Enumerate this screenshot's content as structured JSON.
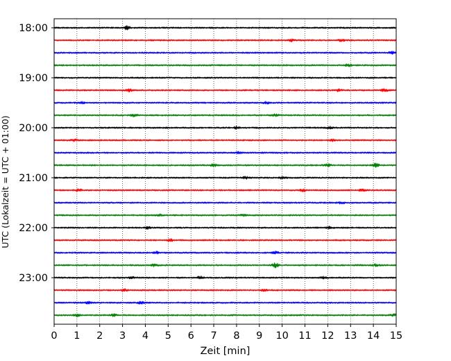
{
  "chart_data": {
    "type": "line",
    "description_kind": "helicorder",
    "xlabel": "Zeit  [min]",
    "ylabel": "UTC (Lokalzeit = UTC + 01:00)",
    "xlim": [
      0,
      15
    ],
    "x_ticks": [
      "0",
      "1",
      "2",
      "3",
      "4",
      "5",
      "6",
      "7",
      "8",
      "9",
      "10",
      "11",
      "12",
      "13",
      "14",
      "15"
    ],
    "y_tick_labels": [
      "18:00",
      "19:00",
      "20:00",
      "21:00",
      "22:00",
      "23:00"
    ],
    "grid": {
      "vertical": true,
      "horizontal": false
    },
    "trace_colors": [
      "#000000",
      "#ff0000",
      "#0000ff",
      "#008000"
    ],
    "series": [
      {
        "start": "18:00",
        "events": [
          {
            "x": 3.2,
            "amp": 2.5
          }
        ]
      },
      {
        "start": "18:15",
        "events": [
          {
            "x": 10.4,
            "amp": 1.6
          },
          {
            "x": 12.6,
            "amp": 1.3
          }
        ]
      },
      {
        "start": "18:30",
        "events": [
          {
            "x": 14.8,
            "amp": 1.5
          }
        ]
      },
      {
        "start": "18:45",
        "events": [
          {
            "x": 12.9,
            "amp": 1.3
          }
        ]
      },
      {
        "start": "19:00",
        "events": []
      },
      {
        "start": "19:15",
        "events": [
          {
            "x": 3.3,
            "amp": 1.5
          },
          {
            "x": 12.5,
            "amp": 1.6
          },
          {
            "x": 14.5,
            "amp": 2.0
          }
        ]
      },
      {
        "start": "19:30",
        "events": [
          {
            "x": 1.2,
            "amp": 1.3
          },
          {
            "x": 9.3,
            "amp": 1.3
          }
        ]
      },
      {
        "start": "19:45",
        "events": [
          {
            "x": 3.5,
            "amp": 1.7
          },
          {
            "x": 9.7,
            "amp": 1.4
          }
        ]
      },
      {
        "start": "20:00",
        "events": [
          {
            "x": 8.0,
            "amp": 1.5
          },
          {
            "x": 12.1,
            "amp": 1.3
          }
        ]
      },
      {
        "start": "20:15",
        "events": [
          {
            "x": 0.9,
            "amp": 1.3
          },
          {
            "x": 12.2,
            "amp": 1.4
          }
        ]
      },
      {
        "start": "20:30",
        "events": [
          {
            "x": 8.1,
            "amp": 1.3
          }
        ]
      },
      {
        "start": "20:45",
        "events": [
          {
            "x": 7.0,
            "amp": 1.5
          },
          {
            "x": 12.0,
            "amp": 1.6
          },
          {
            "x": 14.1,
            "amp": 2.5
          }
        ]
      },
      {
        "start": "21:00",
        "events": [
          {
            "x": 8.4,
            "amp": 1.6
          },
          {
            "x": 10.0,
            "amp": 1.5
          }
        ]
      },
      {
        "start": "21:15",
        "events": [
          {
            "x": 1.1,
            "amp": 1.4
          },
          {
            "x": 10.9,
            "amp": 1.6
          },
          {
            "x": 13.5,
            "amp": 1.4
          }
        ]
      },
      {
        "start": "21:30",
        "events": [
          {
            "x": 12.6,
            "amp": 1.3
          }
        ]
      },
      {
        "start": "21:45",
        "events": [
          {
            "x": 4.6,
            "amp": 1.3
          },
          {
            "x": 8.3,
            "amp": 1.3
          }
        ]
      },
      {
        "start": "22:00",
        "events": [
          {
            "x": 4.1,
            "amp": 1.4
          },
          {
            "x": 12.1,
            "amp": 1.3
          }
        ]
      },
      {
        "start": "22:15",
        "events": [
          {
            "x": 5.1,
            "amp": 1.3
          }
        ]
      },
      {
        "start": "22:30",
        "events": [
          {
            "x": 4.5,
            "amp": 1.4
          },
          {
            "x": 9.7,
            "amp": 1.5
          }
        ]
      },
      {
        "start": "22:45",
        "events": [
          {
            "x": 4.4,
            "amp": 1.5
          },
          {
            "x": 9.7,
            "amp": 3.0
          },
          {
            "x": 14.1,
            "amp": 1.3
          }
        ]
      },
      {
        "start": "23:00",
        "events": [
          {
            "x": 3.4,
            "amp": 1.3
          },
          {
            "x": 6.4,
            "amp": 2.0
          },
          {
            "x": 11.8,
            "amp": 1.4
          }
        ]
      },
      {
        "start": "23:15",
        "events": [
          {
            "x": 3.1,
            "amp": 1.5
          },
          {
            "x": 9.2,
            "amp": 1.4
          }
        ]
      },
      {
        "start": "23:30",
        "events": [
          {
            "x": 1.5,
            "amp": 1.5
          },
          {
            "x": 3.8,
            "amp": 1.4
          }
        ]
      },
      {
        "start": "23:45",
        "events": [
          {
            "x": 1.0,
            "amp": 1.4
          },
          {
            "x": 2.6,
            "amp": 1.4
          },
          {
            "x": 14.9,
            "amp": 1.4
          }
        ]
      }
    ]
  }
}
